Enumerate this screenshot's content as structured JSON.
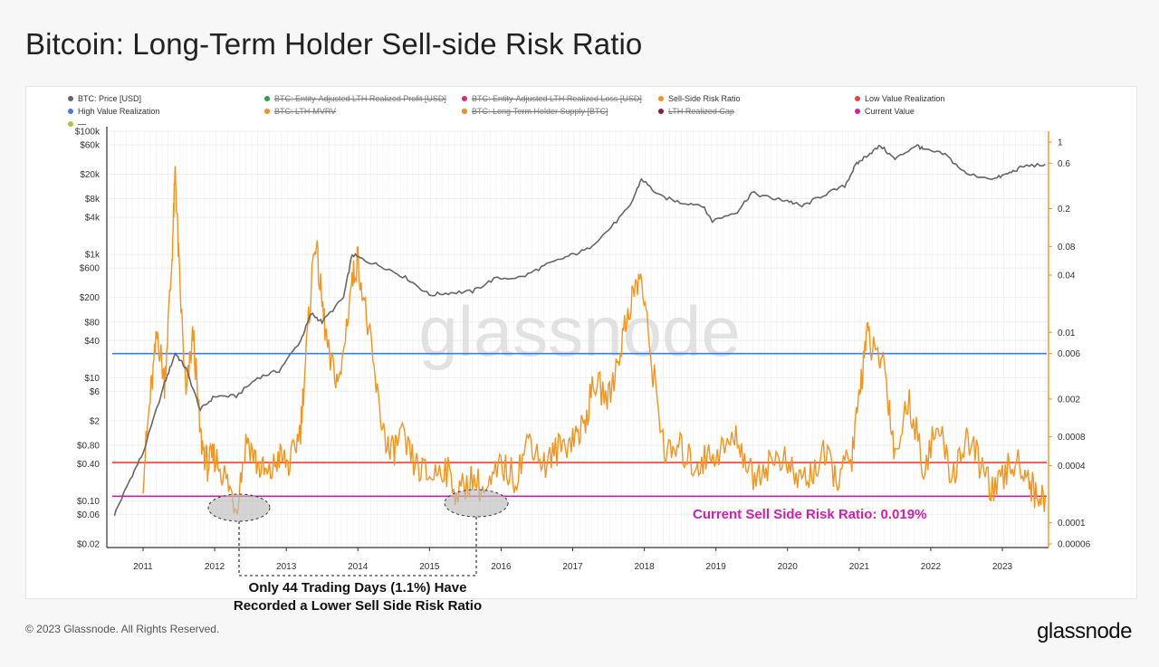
{
  "title": "Bitcoin: Long-Term Holder Sell-side Risk Ratio",
  "legend": [
    {
      "label": "BTC: Price [USD]",
      "color": "#666666",
      "active": true
    },
    {
      "label": "BTC: Entity-Adjusted LTH Realized Profit [USD]",
      "color": "#2e9e4f",
      "active": false
    },
    {
      "label": "BTC: Entity-Adjusted LTH Realized Loss [USD]",
      "color": "#d6287c",
      "active": false
    },
    {
      "label": "Sell-Side Risk Ratio",
      "color": "#f7931a",
      "active": true
    },
    {
      "label": "Low Value Realization",
      "color": "#e8443a",
      "active": true
    },
    {
      "label": "High Value Realization",
      "color": "#3a7ee8",
      "active": true
    },
    {
      "label": "BTC: LTH-MVRV",
      "color": "#f7931a",
      "active": false
    },
    {
      "label": "BTC: Long-Term Holder Supply [BTC]",
      "color": "#f08a24",
      "active": false
    },
    {
      "label": "LTH Realized Cap",
      "color": "#8b1a4a",
      "active": false
    },
    {
      "label": "Current Value",
      "color": "#d21fa8",
      "active": true
    },
    {
      "label": "—",
      "color": "#a8c64a",
      "active": false
    }
  ],
  "watermark": "glassnode",
  "annotation": {
    "current_label": "Current Sell Side Risk Ratio: 0.019%",
    "note_line1": "Only 44 Trading Days (1.1%) Have",
    "note_line2": "Recorded a Lower Sell Side Risk Ratio"
  },
  "footer": {
    "copyright": "© 2023 Glassnode. All Rights Reserved.",
    "brand": "glassnode"
  },
  "chart_data": {
    "type": "line",
    "title": "Bitcoin: Long-Term Holder Sell-side Risk Ratio",
    "x_ticks": [
      "2011",
      "2012",
      "2013",
      "2014",
      "2015",
      "2016",
      "2017",
      "2018",
      "2019",
      "2020",
      "2021",
      "2022",
      "2023"
    ],
    "y_left_ticks": [
      "$100k",
      "$60k",
      "$20k",
      "$8k",
      "$4k",
      "$1k",
      "$600",
      "$200",
      "$80",
      "$40",
      "$10",
      "$6",
      "$2",
      "$0.80",
      "$0.40",
      "$0.10",
      "$0.06",
      "$0.02"
    ],
    "y_left_scale": "log",
    "y_right_ticks": [
      "1",
      "0.6",
      "0.2",
      "0.08",
      "0.04",
      "0.01",
      "0.006",
      "0.002",
      "0.0008",
      "0.0004",
      "0.0001",
      "0.00006"
    ],
    "y_right_scale": "log",
    "thresholds": {
      "high_value_realization": 0.006,
      "low_value_realization": 0.00043,
      "current_value": 0.00019
    },
    "series": [
      {
        "name": "BTC: Price [USD]",
        "axis": "left",
        "x": [
          2010.6,
          2010.8,
          2011.0,
          2011.3,
          2011.45,
          2011.6,
          2011.8,
          2012.0,
          2012.3,
          2012.6,
          2012.9,
          2013.2,
          2013.35,
          2013.5,
          2013.8,
          2013.92,
          2014.1,
          2014.4,
          2014.7,
          2015.0,
          2015.3,
          2015.6,
          2015.9,
          2016.3,
          2016.6,
          2016.9,
          2017.2,
          2017.5,
          2017.8,
          2017.96,
          2018.2,
          2018.5,
          2018.8,
          2018.95,
          2019.3,
          2019.5,
          2019.8,
          2020.0,
          2020.2,
          2020.5,
          2020.8,
          2020.95,
          2021.1,
          2021.3,
          2021.5,
          2021.8,
          2021.9,
          2022.2,
          2022.5,
          2022.9,
          2023.1,
          2023.3,
          2023.6
        ],
        "values": [
          0.06,
          0.2,
          0.6,
          8,
          25,
          14,
          3,
          5,
          5,
          10,
          13,
          40,
          110,
          80,
          200,
          1000,
          800,
          600,
          400,
          220,
          240,
          250,
          400,
          430,
          650,
          900,
          1200,
          2500,
          6000,
          17000,
          9000,
          7000,
          6400,
          3500,
          5000,
          10000,
          8000,
          7500,
          6000,
          9200,
          13000,
          28000,
          40000,
          58000,
          35000,
          60000,
          50000,
          42000,
          20000,
          17000,
          21000,
          27000,
          29000
        ]
      },
      {
        "name": "Sell-Side Risk Ratio",
        "axis": "right",
        "x": [
          2011.0,
          2011.1,
          2011.2,
          2011.3,
          2011.4,
          2011.45,
          2011.5,
          2011.6,
          2011.7,
          2011.8,
          2011.9,
          2012.0,
          2012.15,
          2012.3,
          2012.45,
          2012.6,
          2012.75,
          2012.9,
          2013.05,
          2013.2,
          2013.3,
          2013.4,
          2013.5,
          2013.6,
          2013.75,
          2013.9,
          2014.0,
          2014.15,
          2014.3,
          2014.45,
          2014.6,
          2014.8,
          2015.0,
          2015.2,
          2015.4,
          2015.6,
          2015.8,
          2016.0,
          2016.2,
          2016.4,
          2016.6,
          2016.8,
          2017.0,
          2017.15,
          2017.3,
          2017.5,
          2017.65,
          2017.8,
          2017.95,
          2018.1,
          2018.3,
          2018.5,
          2018.7,
          2018.9,
          2019.1,
          2019.3,
          2019.5,
          2019.7,
          2019.9,
          2020.1,
          2020.3,
          2020.5,
          2020.7,
          2020.9,
          2021.0,
          2021.1,
          2021.2,
          2021.35,
          2021.5,
          2021.7,
          2021.9,
          2022.1,
          2022.3,
          2022.5,
          2022.7,
          2022.9,
          2023.1,
          2023.3,
          2023.45,
          2023.6
        ],
        "values": [
          0.0003,
          0.002,
          0.01,
          0.003,
          0.05,
          0.5,
          0.05,
          0.002,
          0.01,
          0.0008,
          0.0004,
          0.0005,
          0.0003,
          0.00015,
          0.0008,
          0.0004,
          0.0003,
          0.0005,
          0.0004,
          0.001,
          0.01,
          0.1,
          0.02,
          0.005,
          0.003,
          0.03,
          0.06,
          0.01,
          0.0015,
          0.0005,
          0.0008,
          0.0004,
          0.0003,
          0.0004,
          0.0002,
          0.0003,
          0.0002,
          0.0004,
          0.0003,
          0.0008,
          0.0004,
          0.0006,
          0.0008,
          0.001,
          0.003,
          0.002,
          0.006,
          0.02,
          0.04,
          0.005,
          0.0005,
          0.0006,
          0.0004,
          0.0005,
          0.0006,
          0.0008,
          0.0003,
          0.0004,
          0.0005,
          0.0003,
          0.0003,
          0.0005,
          0.0003,
          0.0005,
          0.002,
          0.01,
          0.006,
          0.005,
          0.0005,
          0.002,
          0.0004,
          0.001,
          0.0003,
          0.0008,
          0.0004,
          0.0002,
          0.0004,
          0.0004,
          0.0002,
          0.00019
        ]
      }
    ]
  }
}
